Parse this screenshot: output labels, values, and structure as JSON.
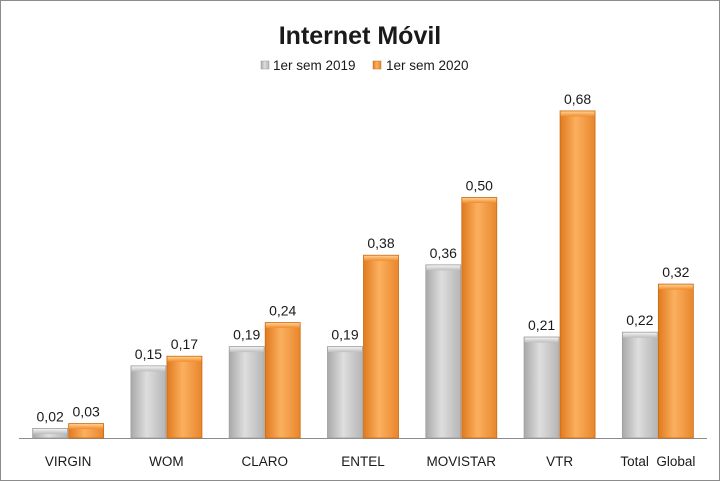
{
  "chart_data": {
    "type": "bar",
    "title": "Internet Móvil",
    "categories": [
      "VIRGIN",
      "WOM",
      "CLARO",
      "ENTEL",
      "MOVISTAR",
      "VTR",
      "Total  Global"
    ],
    "series": [
      {
        "name": "1er sem 2019",
        "color": "#c8c8c8",
        "values": [
          0.02,
          0.15,
          0.19,
          0.19,
          0.36,
          0.21,
          0.22
        ],
        "labels": [
          "0,02",
          "0,15",
          "0,19",
          "0,19",
          "0,36",
          "0,21",
          "0,22"
        ]
      },
      {
        "name": "1er sem 2020",
        "color": "#f79a3e",
        "values": [
          0.03,
          0.17,
          0.24,
          0.38,
          0.5,
          0.68,
          0.32
        ],
        "labels": [
          "0,03",
          "0,17",
          "0,24",
          "0,38",
          "0,50",
          "0,68",
          "0,32"
        ]
      }
    ],
    "xlabel": "",
    "ylabel": "",
    "ylim": [
      0,
      0.7
    ],
    "grid": false,
    "legend_position": "top-center"
  }
}
